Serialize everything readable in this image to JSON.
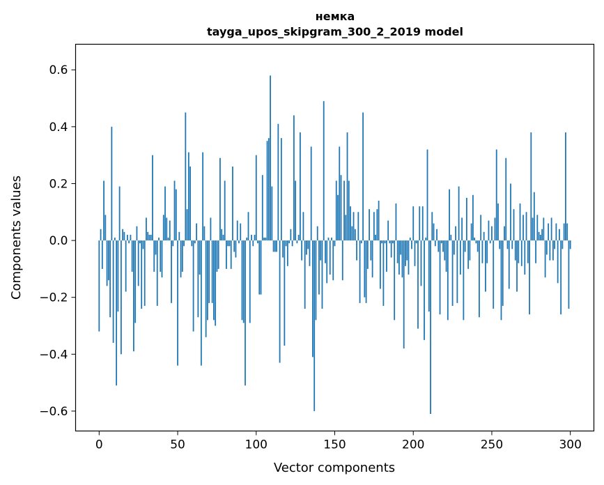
{
  "chart_data": {
    "type": "bar",
    "title_line1": "немка",
    "title_line2": "tayga_upos_skipgram_300_2_2019 model",
    "xlabel": "Vector components",
    "ylabel": "Components values",
    "xlim": [
      -15,
      315
    ],
    "ylim": [
      -0.67,
      0.69
    ],
    "xticks": [
      0,
      50,
      100,
      150,
      200,
      250,
      300
    ],
    "xtick_labels": [
      "0",
      "50",
      "100",
      "150",
      "200",
      "250",
      "300"
    ],
    "yticks": [
      -0.6,
      -0.4,
      -0.2,
      0.0,
      0.2,
      0.4,
      0.6
    ],
    "ytick_labels": [
      "−0.6",
      "−0.4",
      "−0.2",
      "0.0",
      "0.2",
      "0.4",
      "0.6"
    ],
    "bar_color": "#1f77b4",
    "values": [
      -0.32,
      0.04,
      -0.1,
      0.21,
      0.09,
      -0.16,
      -0.14,
      -0.27,
      0.4,
      -0.36,
      0.01,
      -0.51,
      -0.25,
      0.19,
      -0.4,
      0.04,
      0.03,
      -0.18,
      0.02,
      -0.01,
      0.02,
      -0.11,
      -0.39,
      -0.29,
      0.05,
      -0.16,
      -0.01,
      -0.24,
      -0.03,
      -0.23,
      0.08,
      0.03,
      0.02,
      0.02,
      0.3,
      -0.11,
      -0.05,
      -0.23,
      0.01,
      -0.11,
      -0.13,
      0.09,
      0.19,
      0.08,
      0.01,
      0.07,
      -0.22,
      -0.02,
      0.21,
      0.18,
      -0.44,
      0.03,
      -0.13,
      -0.11,
      -0.02,
      0.45,
      0.11,
      0.31,
      0.26,
      -0.02,
      -0.32,
      -0.01,
      0.06,
      -0.27,
      -0.12,
      -0.44,
      0.31,
      0.05,
      -0.34,
      -0.28,
      -0.22,
      0.08,
      -0.22,
      -0.28,
      -0.3,
      -0.11,
      -0.1,
      0.29,
      0.04,
      0.02,
      0.21,
      -0.1,
      -0.02,
      -0.02,
      -0.1,
      0.26,
      -0.04,
      -0.06,
      0.07,
      -0.01,
      0.06,
      -0.28,
      -0.29,
      -0.51,
      0.01,
      0.1,
      -0.29,
      0.02,
      -0.02,
      0.02,
      0.3,
      -0.01,
      -0.19,
      -0.19,
      0.23,
      0.01,
      0.01,
      0.35,
      0.36,
      0.58,
      0.19,
      -0.04,
      -0.04,
      -0.04,
      0.41,
      -0.43,
      0.36,
      -0.06,
      -0.37,
      -0.02,
      -0.09,
      -0.01,
      0.04,
      -0.02,
      0.44,
      0.21,
      -0.01,
      0.02,
      0.38,
      -0.07,
      0.1,
      -0.24,
      -0.05,
      -0.03,
      -0.09,
      0.33,
      -0.41,
      -0.6,
      -0.28,
      0.05,
      -0.19,
      -0.07,
      -0.24,
      0.49,
      -0.08,
      -0.15,
      0.01,
      -0.12,
      0.01,
      -0.14,
      -0.02,
      0.21,
      0.16,
      0.33,
      0.23,
      -0.14,
      0.21,
      0.09,
      0.38,
      0.21,
      0.12,
      0.05,
      0.1,
      0.04,
      -0.07,
      0.1,
      -0.22,
      -0.01,
      0.45,
      -0.2,
      -0.22,
      -0.1,
      0.11,
      -0.07,
      -0.13,
      0.1,
      0.02,
      0.11,
      0.14,
      -0.17,
      -0.01,
      -0.23,
      -0.01,
      -0.11,
      0.07,
      -0.01,
      -0.06,
      -0.01,
      -0.28,
      0.13,
      -0.08,
      -0.12,
      -0.05,
      -0.13,
      -0.38,
      -0.09,
      -0.07,
      -0.12,
      0.01,
      -0.03,
      0.12,
      -0.09,
      -0.01,
      -0.31,
      0.12,
      -0.16,
      0.12,
      -0.35,
      0.01,
      0.32,
      -0.25,
      -0.61,
      0.1,
      0.06,
      -0.02,
      0.04,
      -0.04,
      -0.26,
      -0.01,
      -0.04,
      -0.07,
      -0.11,
      -0.28,
      0.18,
      0.02,
      -0.23,
      -0.05,
      0.05,
      -0.22,
      0.19,
      -0.12,
      0.08,
      -0.28,
      -0.04,
      0.15,
      -0.1,
      -0.07,
      0.06,
      0.16,
      0.01,
      -0.01,
      -0.04,
      -0.27,
      0.09,
      -0.08,
      0.03,
      -0.18,
      -0.08,
      0.07,
      -0.01,
      0.05,
      -0.24,
      0.08,
      0.32,
      0.13,
      -0.03,
      -0.28,
      -0.23,
      0.05,
      0.29,
      -0.03,
      -0.17,
      0.2,
      -0.03,
      0.11,
      -0.07,
      -0.18,
      -0.08,
      0.13,
      -0.09,
      0.09,
      -0.12,
      0.1,
      -0.08,
      -0.26,
      0.38,
      0.08,
      0.17,
      -0.08,
      0.09,
      0.03,
      0.02,
      0.04,
      0.08,
      -0.13,
      -0.05,
      0.06,
      -0.07,
      0.08,
      -0.07,
      -0.03,
      0.06,
      -0.15,
      0.04,
      -0.26,
      -0.03,
      0.06,
      0.38,
      0.06,
      -0.24,
      -0.03
    ]
  }
}
